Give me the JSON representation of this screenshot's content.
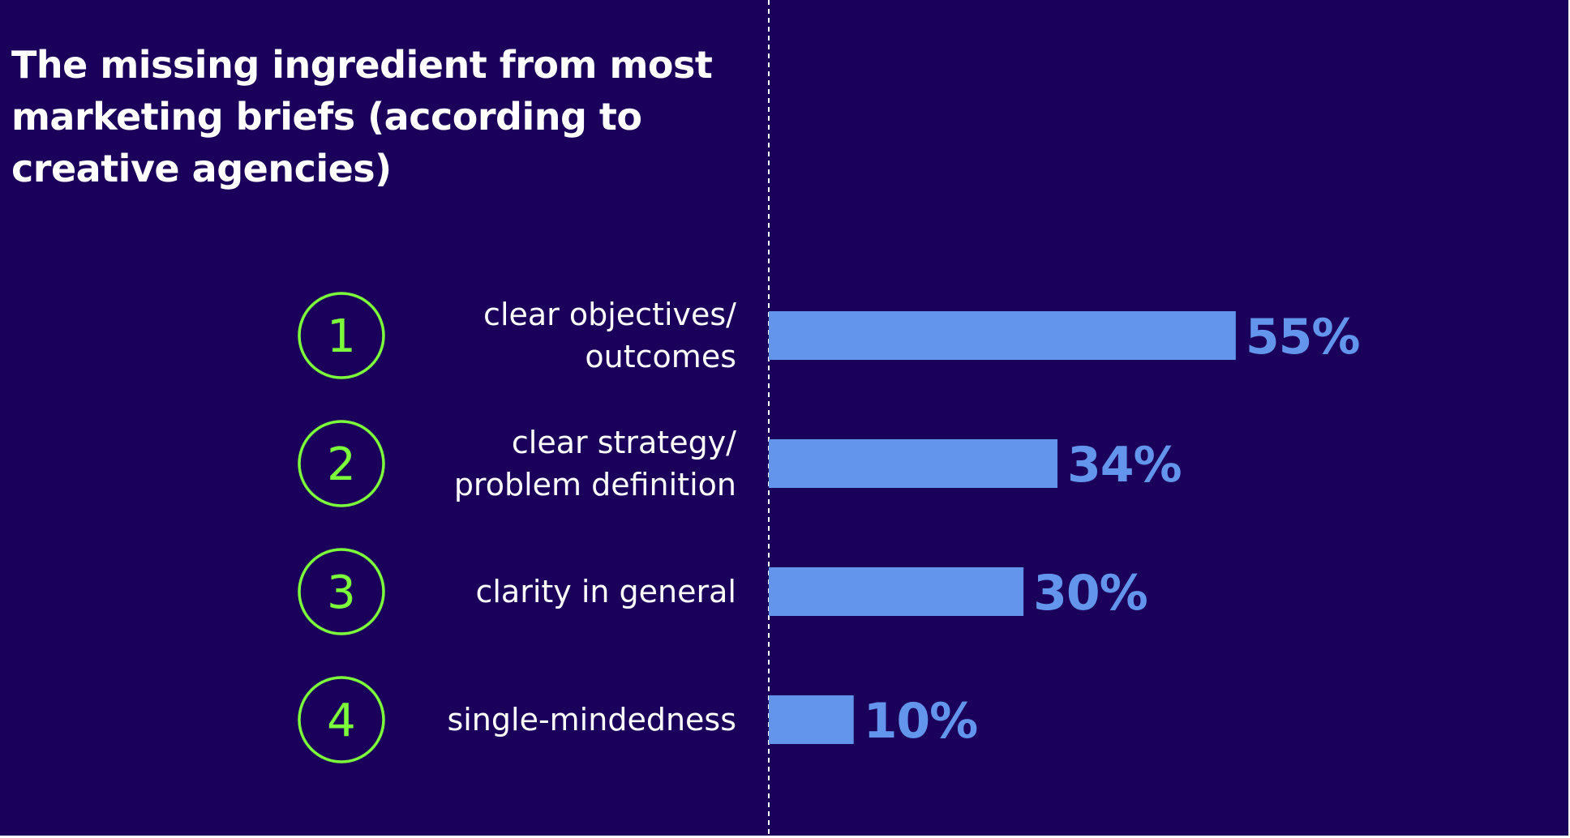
{
  "colors": {
    "background": "#1a005a",
    "bar": "#6495ed",
    "value_label": "#6495ed",
    "rank_circle": "#7cfc3a",
    "category_text": "#ffffff",
    "divider": "#ffffff"
  },
  "chart_data": {
    "type": "bar",
    "orientation": "horizontal",
    "title": "The missing ingredient from most marketing briefs (according to creative agencies)",
    "ranks": [
      "1",
      "2",
      "3",
      "4"
    ],
    "categories": [
      [
        "clear objectives/",
        "outcomes"
      ],
      [
        "clear strategy/",
        "problem definition"
      ],
      [
        "clarity in general"
      ],
      [
        "single-mindedness"
      ]
    ],
    "values": [
      55,
      34,
      30,
      10
    ],
    "value_labels": [
      "55%",
      "34%",
      "30%",
      "10%"
    ],
    "unit": "%",
    "xlim": [
      0,
      100
    ],
    "grid": false,
    "legend": "none"
  }
}
